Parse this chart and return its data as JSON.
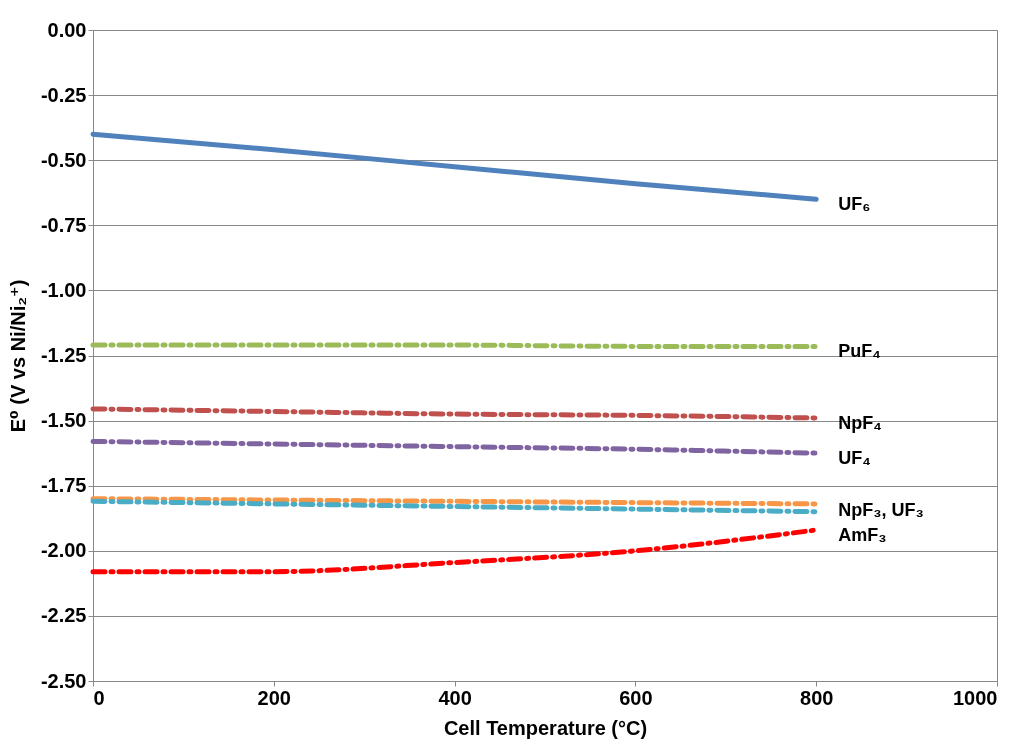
{
  "chart_data": {
    "type": "line",
    "xlabel": "Cell Temperature (°C)",
    "ylabel": "E⁰ (V vs  Ni/Ni₂⁺)",
    "x": [
      0,
      200,
      400,
      600,
      800
    ],
    "series": [
      {
        "name": "UF₆",
        "color": "#4f81bd",
        "values": [
          -0.4,
          -0.46,
          -0.525,
          -0.59,
          -0.65
        ],
        "line_style": "solid"
      },
      {
        "name": "PuF₄",
        "color": "#9bbb59",
        "values": [
          -1.21,
          -1.21,
          -1.21,
          -1.215,
          -1.215
        ],
        "line_style": "dashed"
      },
      {
        "name": "NpF₄",
        "color": "#c0504d",
        "values": [
          -1.455,
          -1.465,
          -1.475,
          -1.48,
          -1.49
        ],
        "line_style": "dashed"
      },
      {
        "name": "UF₄",
        "color": "#8064a2",
        "values": [
          -1.58,
          -1.59,
          -1.6,
          -1.61,
          -1.625
        ],
        "line_style": "dashed"
      },
      {
        "color": "#f79646",
        "values": [
          -1.8,
          -1.805,
          -1.81,
          -1.815,
          -1.82
        ],
        "line_style": "dashed"
      },
      {
        "color": "#4bacc6",
        "values": [
          -1.81,
          -1.82,
          -1.83,
          -1.84,
          -1.85
        ],
        "line_style": "dashed"
      },
      {
        "name": "AmF₃",
        "color": "#ff0000",
        "values": [
          -2.08,
          -2.08,
          -2.045,
          -2.0,
          -1.92
        ],
        "line_style": "dashed"
      }
    ],
    "annotations": [
      {
        "text": "NpF₃, UF₃",
        "x": 800,
        "y": -1.83
      }
    ],
    "xlim": [
      0,
      1000
    ],
    "xticks": [
      0,
      200,
      400,
      600,
      800,
      1000
    ],
    "ylim": [
      -2.5,
      0
    ],
    "yticks": [
      {
        "value": 0,
        "label": "0.00"
      },
      {
        "value": -0.25,
        "label": "-0.25"
      },
      {
        "value": -0.5,
        "label": "-0.50"
      },
      {
        "value": -0.75,
        "label": "-0.75"
      },
      {
        "value": -1,
        "label": "-1.00"
      },
      {
        "value": -1.25,
        "label": "-1.25"
      },
      {
        "value": -1.5,
        "label": "-1.50"
      },
      {
        "value": -1.75,
        "label": "-1.75"
      },
      {
        "value": -2,
        "label": "-2.00"
      },
      {
        "value": -2.25,
        "label": "-2.25"
      },
      {
        "value": -2.5,
        "label": "-2.50"
      }
    ],
    "grid": "y"
  }
}
